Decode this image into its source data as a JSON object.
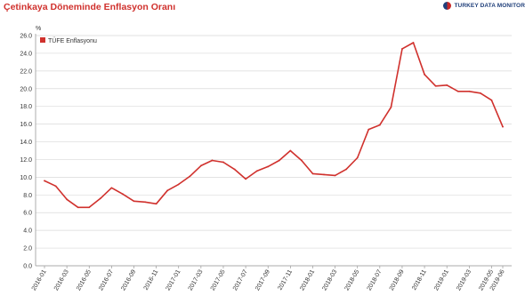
{
  "header": {
    "title": "Çetinkaya Döneminde Enflasyon Oranı",
    "logo_text": "TURKEY DATA MONITOR"
  },
  "colors": {
    "series": "#d0312d",
    "grid": "#d9d9d9",
    "axis": "#999999",
    "title": "#d0312d"
  },
  "chart_data": {
    "type": "line",
    "title": "Çetinkaya Döneminde Enflasyon Oranı",
    "ylabel": "%",
    "xlabel": "",
    "ylim": [
      0,
      26
    ],
    "yticks": [
      "0.0",
      "2.0",
      "4.0",
      "6.0",
      "8.0",
      "10.0",
      "12.0",
      "14.0",
      "16.0",
      "18.0",
      "20.0",
      "22.0",
      "24.0",
      "26.0"
    ],
    "xtick_labels": [
      "2016-01",
      "2016-03",
      "2016-05",
      "2016-07",
      "2016-09",
      "2016-11",
      "2017-01",
      "2017-03",
      "2017-05",
      "2017-07",
      "2017-09",
      "2017-11",
      "2018-01",
      "2018-03",
      "2018-05",
      "2018-07",
      "2018-09",
      "2018-11",
      "2019-01",
      "2019-03",
      "2019-05",
      "2019-06"
    ],
    "grid": true,
    "legend": "top-left",
    "categories": [
      "2016-01",
      "2016-02",
      "2016-03",
      "2016-04",
      "2016-05",
      "2016-06",
      "2016-07",
      "2016-08",
      "2016-09",
      "2016-10",
      "2016-11",
      "2016-12",
      "2017-01",
      "2017-02",
      "2017-03",
      "2017-04",
      "2017-05",
      "2017-06",
      "2017-07",
      "2017-08",
      "2017-09",
      "2017-10",
      "2017-11",
      "2017-12",
      "2018-01",
      "2018-02",
      "2018-03",
      "2018-04",
      "2018-05",
      "2018-06",
      "2018-07",
      "2018-08",
      "2018-09",
      "2018-10",
      "2018-11",
      "2018-12",
      "2019-01",
      "2019-02",
      "2019-03",
      "2019-04",
      "2019-05",
      "2019-06"
    ],
    "series": [
      {
        "name": "TÜFE Enflasyonu",
        "values": [
          9.6,
          9.0,
          7.5,
          6.6,
          6.6,
          7.6,
          8.8,
          8.1,
          7.3,
          7.2,
          7.0,
          8.5,
          9.2,
          10.1,
          11.3,
          11.9,
          11.7,
          10.9,
          9.8,
          10.7,
          11.2,
          11.9,
          13.0,
          11.9,
          10.4,
          10.3,
          10.2,
          10.9,
          12.2,
          15.4,
          15.9,
          17.9,
          24.5,
          25.2,
          21.6,
          20.3,
          20.4,
          19.7,
          19.7,
          19.5,
          18.7,
          15.7
        ]
      }
    ]
  }
}
